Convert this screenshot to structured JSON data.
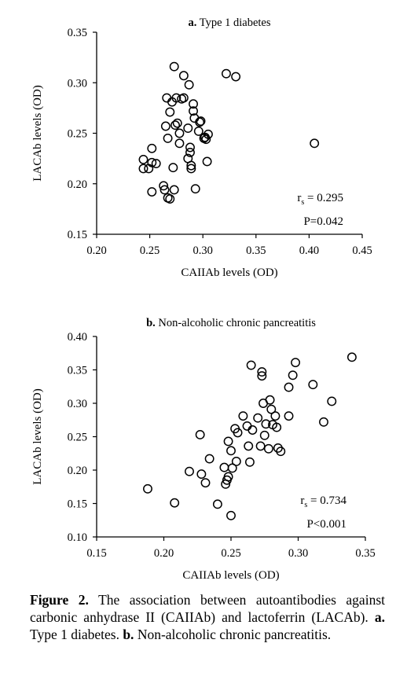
{
  "chart_data": [
    {
      "type": "scatter",
      "title_prefix": "a.",
      "title": "Type 1 diabetes",
      "xlabel": "CAIIAb levels (OD)",
      "ylabel": "LACAb levels (OD)",
      "xlim": [
        0.2,
        0.45
      ],
      "ylim": [
        0.15,
        0.35
      ],
      "xticks": [
        "0.20",
        "0.25",
        "0.30",
        "0.35",
        "0.40",
        "0.45"
      ],
      "yticks": [
        "0.15",
        "0.20",
        "0.25",
        "0.30",
        "0.35"
      ],
      "stat_rs_label": "r",
      "stat_rs_sub": "s",
      "stat_rs_value": " = 0.295",
      "stat_p": "P=0.042",
      "points": [
        [
          0.273,
          0.316
        ],
        [
          0.322,
          0.309
        ],
        [
          0.331,
          0.306
        ],
        [
          0.282,
          0.307
        ],
        [
          0.287,
          0.298
        ],
        [
          0.266,
          0.285
        ],
        [
          0.271,
          0.281
        ],
        [
          0.275,
          0.285
        ],
        [
          0.28,
          0.284
        ],
        [
          0.282,
          0.285
        ],
        [
          0.291,
          0.279
        ],
        [
          0.291,
          0.272
        ],
        [
          0.269,
          0.271
        ],
        [
          0.292,
          0.265
        ],
        [
          0.297,
          0.261
        ],
        [
          0.298,
          0.262
        ],
        [
          0.265,
          0.257
        ],
        [
          0.274,
          0.258
        ],
        [
          0.276,
          0.26
        ],
        [
          0.278,
          0.25
        ],
        [
          0.286,
          0.255
        ],
        [
          0.296,
          0.252
        ],
        [
          0.301,
          0.245
        ],
        [
          0.302,
          0.246
        ],
        [
          0.305,
          0.249
        ],
        [
          0.303,
          0.244
        ],
        [
          0.267,
          0.245
        ],
        [
          0.278,
          0.24
        ],
        [
          0.288,
          0.236
        ],
        [
          0.288,
          0.231
        ],
        [
          0.252,
          0.235
        ],
        [
          0.286,
          0.225
        ],
        [
          0.405,
          0.24
        ],
        [
          0.304,
          0.222
        ],
        [
          0.244,
          0.224
        ],
        [
          0.249,
          0.215
        ],
        [
          0.252,
          0.221
        ],
        [
          0.256,
          0.22
        ],
        [
          0.244,
          0.215
        ],
        [
          0.272,
          0.216
        ],
        [
          0.289,
          0.218
        ],
        [
          0.289,
          0.215
        ],
        [
          0.252,
          0.192
        ],
        [
          0.263,
          0.198
        ],
        [
          0.264,
          0.194
        ],
        [
          0.273,
          0.194
        ],
        [
          0.293,
          0.195
        ],
        [
          0.267,
          0.186
        ],
        [
          0.269,
          0.185
        ]
      ]
    },
    {
      "type": "scatter",
      "title_prefix": "b.",
      "title": "Non-alcoholic chronic pancreatitis",
      "xlabel": "CAIIAb levels (OD)",
      "ylabel": "LACAb levels (OD)",
      "xlim": [
        0.15,
        0.35
      ],
      "ylim": [
        0.1,
        0.4
      ],
      "xticks": [
        "0.15",
        "0.20",
        "0.25",
        "0.30",
        "0.35"
      ],
      "yticks": [
        "0.10",
        "0.15",
        "0.20",
        "0.25",
        "0.30",
        "0.35",
        "0.40"
      ],
      "stat_rs_label": "r",
      "stat_rs_sub": "s",
      "stat_rs_value": " = 0.734",
      "stat_p": "P<0.001",
      "points": [
        [
          0.34,
          0.369
        ],
        [
          0.298,
          0.361
        ],
        [
          0.265,
          0.357
        ],
        [
          0.273,
          0.347
        ],
        [
          0.273,
          0.341
        ],
        [
          0.296,
          0.342
        ],
        [
          0.293,
          0.324
        ],
        [
          0.311,
          0.328
        ],
        [
          0.325,
          0.303
        ],
        [
          0.279,
          0.305
        ],
        [
          0.274,
          0.3
        ],
        [
          0.28,
          0.291
        ],
        [
          0.259,
          0.281
        ],
        [
          0.283,
          0.281
        ],
        [
          0.293,
          0.281
        ],
        [
          0.27,
          0.278
        ],
        [
          0.276,
          0.269
        ],
        [
          0.281,
          0.268
        ],
        [
          0.284,
          0.264
        ],
        [
          0.262,
          0.266
        ],
        [
          0.266,
          0.26
        ],
        [
          0.253,
          0.262
        ],
        [
          0.255,
          0.256
        ],
        [
          0.227,
          0.253
        ],
        [
          0.275,
          0.252
        ],
        [
          0.248,
          0.243
        ],
        [
          0.263,
          0.236
        ],
        [
          0.272,
          0.236
        ],
        [
          0.278,
          0.232
        ],
        [
          0.285,
          0.233
        ],
        [
          0.287,
          0.228
        ],
        [
          0.319,
          0.272
        ],
        [
          0.25,
          0.229
        ],
        [
          0.234,
          0.217
        ],
        [
          0.254,
          0.213
        ],
        [
          0.264,
          0.212
        ],
        [
          0.219,
          0.198
        ],
        [
          0.228,
          0.194
        ],
        [
          0.245,
          0.204
        ],
        [
          0.251,
          0.203
        ],
        [
          0.248,
          0.19
        ],
        [
          0.247,
          0.185
        ],
        [
          0.231,
          0.181
        ],
        [
          0.246,
          0.179
        ],
        [
          0.188,
          0.172
        ],
        [
          0.208,
          0.151
        ],
        [
          0.24,
          0.149
        ],
        [
          0.25,
          0.132
        ]
      ]
    }
  ],
  "caption": {
    "label": "Figure 2.",
    "text1": " The association between autoantibodies against carbonic anhydrase II (CAIIAb) and lactoferrin (LACAb). ",
    "a_label": "a.",
    "a_text": " Type 1 diabetes. ",
    "b_label": "b.",
    "b_text": " Non-alcoholic chronic pancreatitis."
  }
}
